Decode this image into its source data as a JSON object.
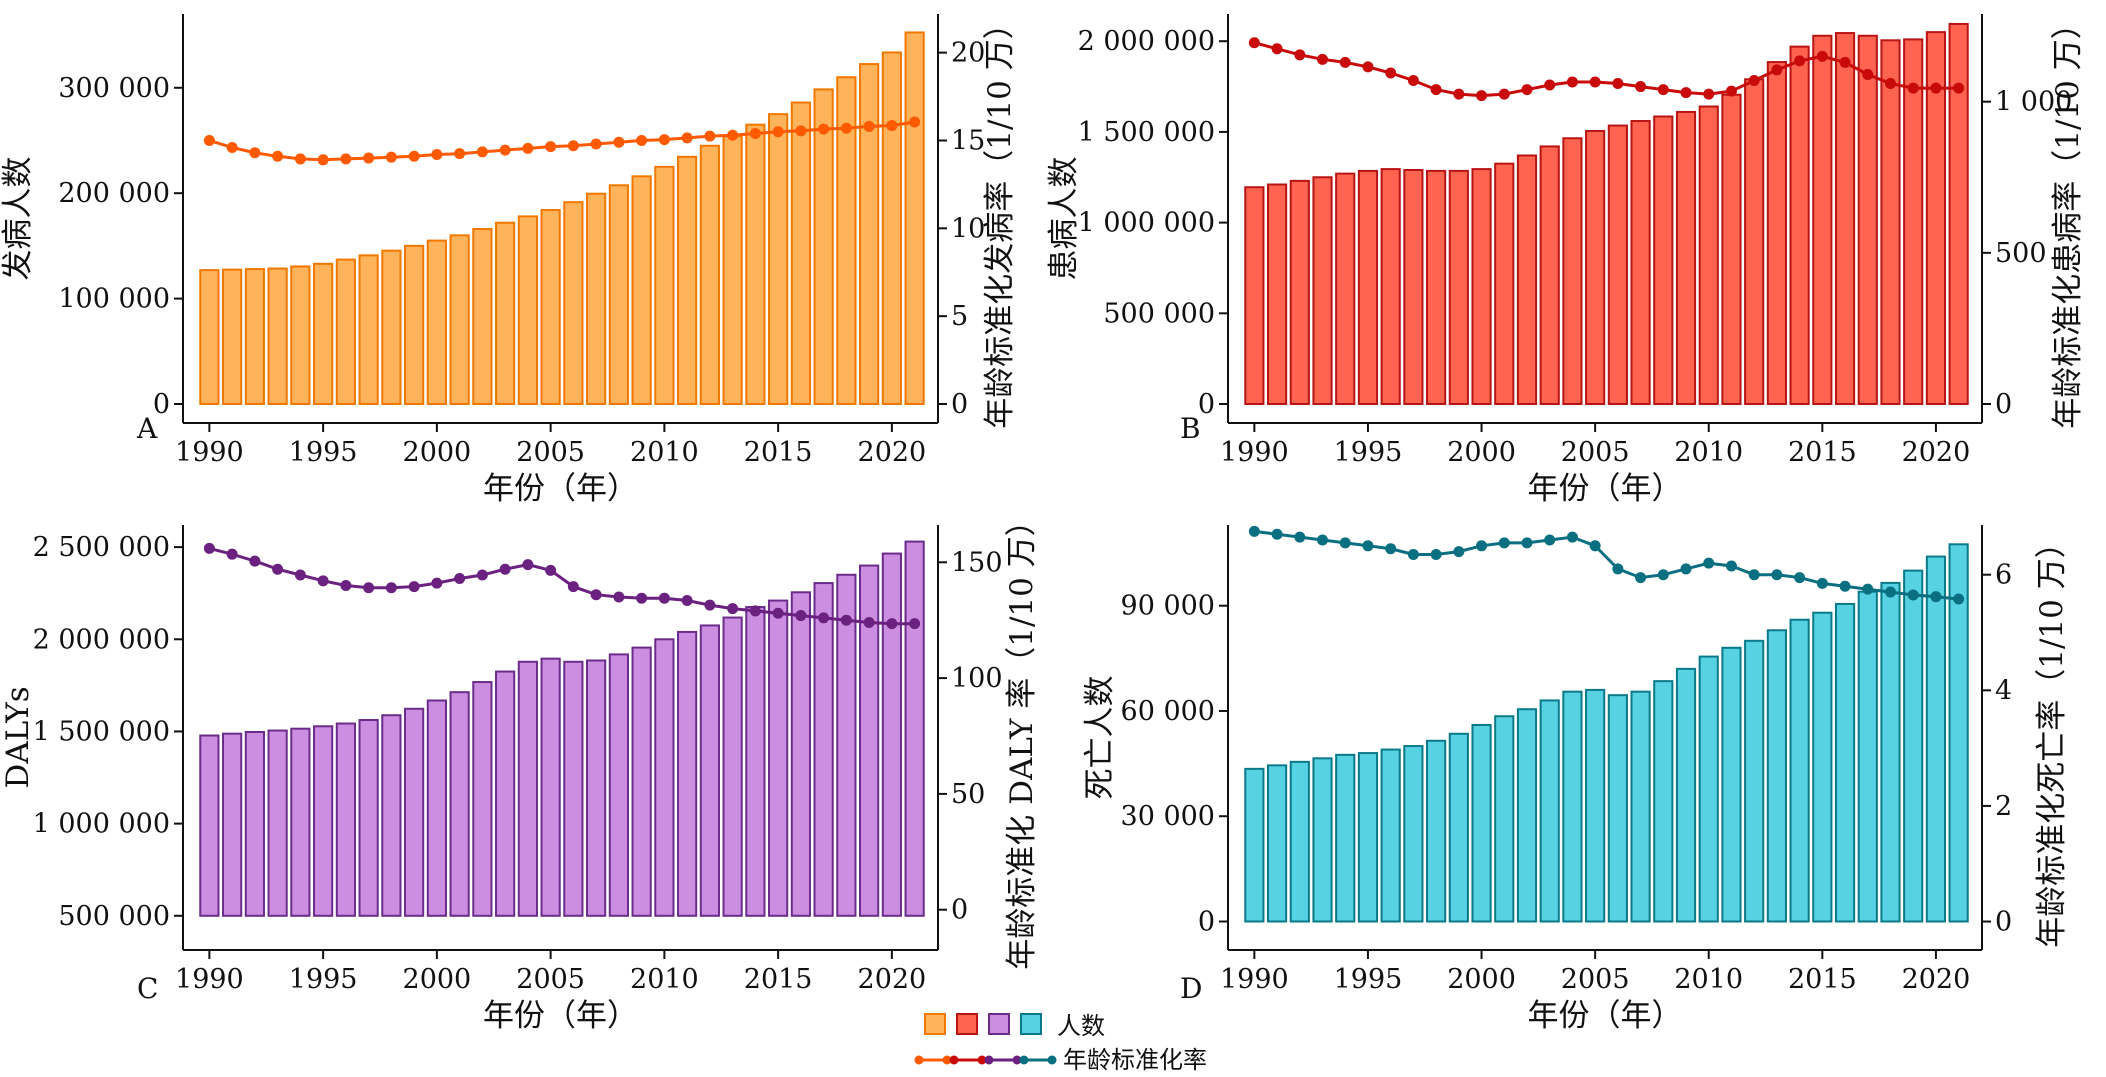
{
  "legend": {
    "count_label": "人数",
    "rate_label": "年龄标准化率"
  },
  "chart_data": [
    {
      "type": "bar",
      "panel": "A",
      "xlabel": "年份（年）",
      "ylabel": "发病人数",
      "y2label": "年龄标准化发病率（1/10 万）",
      "x": [
        1990,
        1991,
        1992,
        1993,
        1994,
        1995,
        1996,
        1997,
        1998,
        1999,
        2000,
        2001,
        2002,
        2003,
        2004,
        2005,
        2006,
        2007,
        2008,
        2009,
        2010,
        2011,
        2012,
        2013,
        2014,
        2015,
        2016,
        2017,
        2018,
        2019,
        2020,
        2021
      ],
      "xticks": [
        1990,
        1995,
        2000,
        2005,
        2010,
        2015,
        2020
      ],
      "xtick_labels": [
        "1990",
        "1995",
        "2000",
        "2005",
        "2010",
        "2015",
        "2020"
      ],
      "ylim": [
        0,
        370000
      ],
      "yticks": [
        0,
        100000,
        200000,
        300000
      ],
      "ytick_labels": [
        "0",
        "100 000",
        "200 000",
        "300 000"
      ],
      "y2lim": [
        0,
        22.2
      ],
      "y2ticks": [
        0,
        5,
        10,
        15,
        20
      ],
      "y2tick_labels": [
        "0",
        "5",
        "10",
        "15",
        "20"
      ],
      "grid": false,
      "bar_fill": "#ffb35a",
      "bar_edge": "#f07800",
      "line_color": "#ff5a00",
      "series": [
        {
          "name": "人数",
          "kind": "bar",
          "axis": "left",
          "values": [
            127000,
            127500,
            128000,
            128500,
            130500,
            133000,
            137000,
            141000,
            145500,
            150000,
            155000,
            160000,
            166000,
            172000,
            178000,
            184000,
            191500,
            199500,
            207500,
            216000,
            225000,
            234500,
            245000,
            254000,
            265000,
            275000,
            286000,
            298500,
            310000,
            322500,
            333500,
            352500
          ]
        },
        {
          "name": "年龄标准化率",
          "kind": "line",
          "axis": "right",
          "values": [
            15.0,
            14.6,
            14.3,
            14.1,
            13.95,
            13.9,
            13.95,
            14.0,
            14.05,
            14.1,
            14.2,
            14.25,
            14.35,
            14.45,
            14.55,
            14.65,
            14.7,
            14.8,
            14.9,
            15.0,
            15.05,
            15.15,
            15.25,
            15.3,
            15.4,
            15.5,
            15.55,
            15.65,
            15.7,
            15.8,
            15.85,
            16.05
          ]
        }
      ]
    },
    {
      "type": "bar",
      "panel": "B",
      "xlabel": "年份（年）",
      "ylabel": "患病人数",
      "y2label": "年龄标准化患病率（1/10 万）",
      "x": [
        1990,
        1991,
        1992,
        1993,
        1994,
        1995,
        1996,
        1997,
        1998,
        1999,
        2000,
        2001,
        2002,
        2003,
        2004,
        2005,
        2006,
        2007,
        2008,
        2009,
        2010,
        2011,
        2012,
        2013,
        2014,
        2015,
        2016,
        2017,
        2018,
        2019,
        2020,
        2021
      ],
      "xticks": [
        1990,
        1995,
        2000,
        2005,
        2010,
        2015,
        2020
      ],
      "xtick_labels": [
        "1990",
        "1995",
        "2000",
        "2005",
        "2010",
        "2015",
        "2020"
      ],
      "ylim": [
        0,
        2150000
      ],
      "yticks": [
        0,
        500000,
        1000000,
        1500000,
        2000000
      ],
      "ytick_labels": [
        "0",
        "500 000",
        "1 000 000",
        "1 500 000",
        "2 000 000"
      ],
      "y2lim": [
        0,
        1290
      ],
      "y2ticks": [
        0,
        500,
        1000
      ],
      "y2tick_labels": [
        "0",
        "500",
        "1 000"
      ],
      "grid": false,
      "bar_fill": "#ff6450",
      "bar_edge": "#b81414",
      "line_color": "#c80a0a",
      "series": [
        {
          "name": "人数",
          "kind": "bar",
          "axis": "left",
          "values": [
            1195000,
            1210000,
            1230000,
            1250000,
            1270000,
            1285000,
            1295000,
            1290000,
            1285000,
            1285000,
            1295000,
            1325000,
            1370000,
            1420000,
            1465000,
            1505000,
            1535000,
            1560000,
            1585000,
            1610000,
            1640000,
            1705000,
            1790000,
            1885000,
            1970000,
            2030000,
            2045000,
            2030000,
            2005000,
            2010000,
            2050000,
            2095000
          ]
        },
        {
          "name": "年龄标准化率",
          "kind": "line",
          "axis": "right",
          "values": [
            1195,
            1175,
            1155,
            1140,
            1130,
            1115,
            1095,
            1070,
            1040,
            1025,
            1020,
            1025,
            1040,
            1055,
            1065,
            1065,
            1060,
            1050,
            1040,
            1030,
            1025,
            1035,
            1070,
            1105,
            1135,
            1150,
            1130,
            1090,
            1060,
            1045,
            1045,
            1045
          ]
        }
      ]
    },
    {
      "type": "bar",
      "panel": "C",
      "xlabel": "年份（年）",
      "ylabel": "DALYs",
      "y2label": "年龄标准化 DALY 率（1/10 万）",
      "x": [
        1990,
        1991,
        1992,
        1993,
        1994,
        1995,
        1996,
        1997,
        1998,
        1999,
        2000,
        2001,
        2002,
        2003,
        2004,
        2005,
        2006,
        2007,
        2008,
        2009,
        2010,
        2011,
        2012,
        2013,
        2014,
        2015,
        2016,
        2017,
        2018,
        2019,
        2020,
        2021
      ],
      "xticks": [
        1990,
        1995,
        2000,
        2005,
        2010,
        2015,
        2020
      ],
      "xtick_labels": [
        "1990",
        "1995",
        "2000",
        "2005",
        "2010",
        "2015",
        "2020"
      ],
      "ylim": [
        450000,
        2620000
      ],
      "yticks": [
        500000,
        1000000,
        1500000,
        2000000,
        2500000
      ],
      "ytick_labels": [
        "500 000",
        "1 000 000",
        "1 500 000",
        "2 000 000",
        "2 500 000"
      ],
      "y2lim": [
        -6.6,
        166.1
      ],
      "y2ticks": [
        0,
        50,
        100,
        150
      ],
      "y2tick_labels": [
        "0",
        "50",
        "100",
        "150"
      ],
      "grid": false,
      "bar_fill": "#cc8ee0",
      "bar_edge": "#6a2c8a",
      "line_color": "#6a2180",
      "series": [
        {
          "name": "人数",
          "kind": "bar",
          "axis": "left",
          "values": [
            1478000,
            1488000,
            1497000,
            1505000,
            1515000,
            1528000,
            1543000,
            1562000,
            1588000,
            1623000,
            1668000,
            1713000,
            1768000,
            1825000,
            1878000,
            1895000,
            1878000,
            1885000,
            1918000,
            1955000,
            2000000,
            2040000,
            2075000,
            2118000,
            2175000,
            2210000,
            2255000,
            2305000,
            2350000,
            2400000,
            2465000,
            2530000
          ]
        },
        {
          "name": "年龄标准化率",
          "kind": "line",
          "axis": "right",
          "values": [
            156,
            153.5,
            150.5,
            147,
            144.5,
            142,
            140,
            139,
            139,
            139.5,
            141,
            143,
            144.5,
            147,
            149,
            146.5,
            139.5,
            136,
            135,
            134.5,
            134.5,
            133.5,
            131.5,
            130,
            129,
            128,
            127,
            126,
            125,
            124,
            123.5,
            123.5
          ]
        }
      ]
    },
    {
      "type": "bar",
      "panel": "D",
      "xlabel": "年份（年）",
      "ylabel": "死亡人数",
      "y2label": "年龄标准化死亡率（1/10 万）",
      "x": [
        1990,
        1991,
        1992,
        1993,
        1994,
        1995,
        1996,
        1997,
        1998,
        1999,
        2000,
        2001,
        2002,
        2003,
        2004,
        2005,
        2006,
        2007,
        2008,
        2009,
        2010,
        2011,
        2012,
        2013,
        2014,
        2015,
        2016,
        2017,
        2018,
        2019,
        2020,
        2021
      ],
      "xticks": [
        1990,
        1995,
        2000,
        2005,
        2010,
        2015,
        2020
      ],
      "xtick_labels": [
        "1990",
        "1995",
        "2000",
        "2005",
        "2010",
        "2015",
        "2020"
      ],
      "ylim": [
        -1000,
        113000
      ],
      "yticks": [
        0,
        30000,
        60000,
        90000
      ],
      "ytick_labels": [
        "0",
        "30 000",
        "60 000",
        "90 000"
      ],
      "y2lim": [
        -0.06,
        6.86
      ],
      "y2ticks": [
        0,
        2,
        4,
        6
      ],
      "y2tick_labels": [
        "0",
        "2",
        "4",
        "6"
      ],
      "grid": false,
      "bar_fill": "#57d2e2",
      "bar_edge": "#0a7a88",
      "line_color": "#0a6f80",
      "series": [
        {
          "name": "人数",
          "kind": "bar",
          "axis": "left",
          "values": [
            43500,
            44500,
            45500,
            46500,
            47500,
            48000,
            49000,
            50000,
            51500,
            53500,
            56000,
            58500,
            60500,
            63000,
            65500,
            66000,
            64500,
            65500,
            68500,
            72000,
            75500,
            78000,
            80000,
            83000,
            86000,
            88000,
            90500,
            94000,
            96500,
            100000,
            104000,
            107500
          ]
        },
        {
          "name": "年龄标准化率",
          "kind": "line",
          "axis": "right",
          "values": [
            6.75,
            6.7,
            6.65,
            6.6,
            6.55,
            6.5,
            6.45,
            6.35,
            6.35,
            6.4,
            6.5,
            6.55,
            6.55,
            6.6,
            6.65,
            6.5,
            6.1,
            5.95,
            6.0,
            6.1,
            6.2,
            6.15,
            6.0,
            6.0,
            5.95,
            5.85,
            5.8,
            5.75,
            5.7,
            5.65,
            5.62,
            5.58
          ]
        }
      ]
    }
  ]
}
